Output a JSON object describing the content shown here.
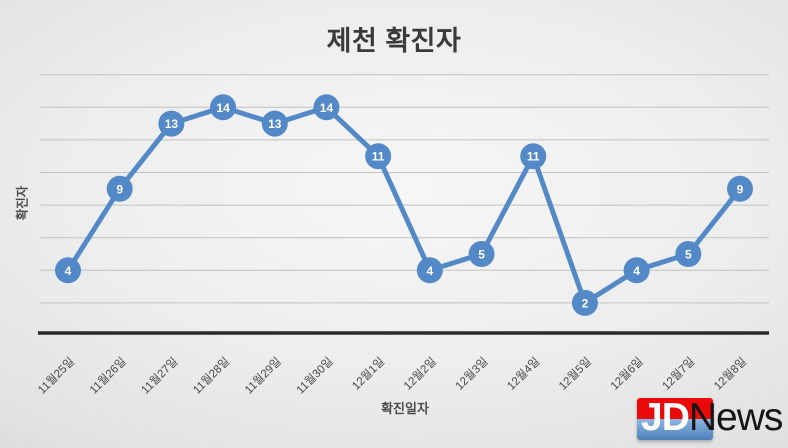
{
  "chart_data": {
    "type": "line",
    "title": "제천 확진자",
    "categories": [
      "11월25일",
      "11월26일",
      "11월27일",
      "11월28일",
      "11월29일",
      "11월30일",
      "12월1일",
      "12월2일",
      "12월3일",
      "12월4일",
      "12월5일",
      "12월6일",
      "12월7일",
      "12월8일"
    ],
    "series": [
      {
        "name": "확진자",
        "values": [
          4,
          9,
          13,
          14,
          13,
          14,
          11,
          4,
          5,
          11,
          2,
          4,
          5,
          9
        ]
      }
    ],
    "xlabel": "확진일자",
    "ylabel": "확진자",
    "ylim": [
      0,
      16
    ],
    "grid": true,
    "grid_step": 2,
    "legend_position": "none",
    "colors": {
      "line": "#5389c6",
      "marker": "#5389c6",
      "point_label": "#ffffff",
      "gridline": "#c2c2c2",
      "axis_line": "#2a2a2a",
      "tick_label": "#474747",
      "title": "#3a3a3a",
      "axis_title": "#4d4d4d"
    }
  },
  "watermark": {
    "text_left": "JD",
    "text_right": "News",
    "red": "#ea0a0a",
    "blue_top": "#8cb6e0",
    "blue_bottom": "#4d81ba",
    "jd_color": "#ffffff",
    "news_color": "#151515"
  }
}
